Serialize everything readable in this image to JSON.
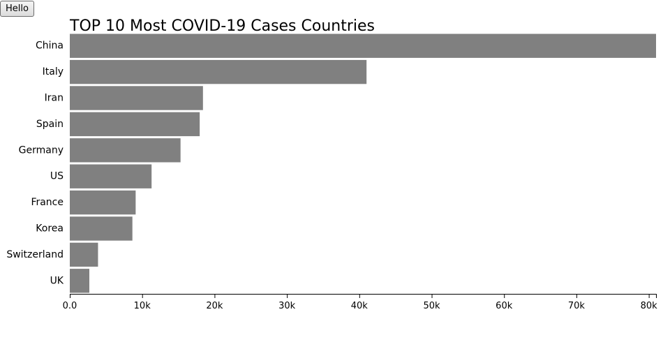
{
  "button": {
    "label": "Hello"
  },
  "chart_data": {
    "type": "bar",
    "orientation": "horizontal",
    "title": "TOP 10 Most COVID-19 Cases Countries",
    "xlabel": "",
    "ylabel": "",
    "categories": [
      "China",
      "Italy",
      "Iran",
      "Spain",
      "Germany",
      "US",
      "France",
      "Korea",
      "Switzerland",
      "UK"
    ],
    "values": [
      81000,
      41000,
      18400,
      17950,
      15300,
      11300,
      9100,
      8650,
      3900,
      2700
    ],
    "xlim": [
      0,
      81000
    ],
    "x_ticks": [
      0,
      10000,
      20000,
      30000,
      40000,
      50000,
      60000,
      70000,
      80000
    ],
    "x_tick_labels": [
      "0.0",
      "10k",
      "20k",
      "30k",
      "40k",
      "50k",
      "60k",
      "70k",
      "80k"
    ],
    "grid": false,
    "bar_color": "#808080"
  }
}
